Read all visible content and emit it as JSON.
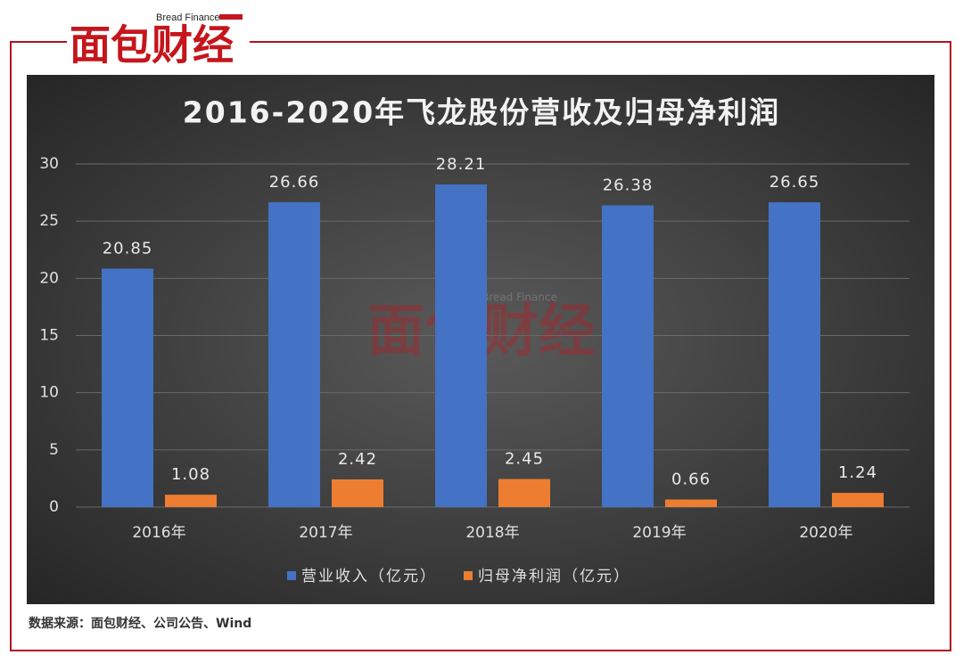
{
  "logo": {
    "name": "面包财经",
    "english": "Bread Finance"
  },
  "chart_data": {
    "type": "bar",
    "title": "2016-2020年飞龙股份营收及归母净利润",
    "categories": [
      "2016年",
      "2017年",
      "2018年",
      "2019年",
      "2020年"
    ],
    "series": [
      {
        "name": "营业收入（亿元）",
        "color": "#4472c4",
        "values": [
          20.85,
          26.66,
          28.21,
          26.38,
          26.65
        ]
      },
      {
        "name": "归母净利润（亿元）",
        "color": "#ed7d31",
        "values": [
          1.08,
          2.42,
          2.45,
          0.66,
          1.24
        ]
      }
    ],
    "ylim": [
      0,
      30
    ],
    "yticks": [
      0,
      5,
      10,
      15,
      20,
      25,
      30
    ],
    "grid": true,
    "legend": "bottom"
  },
  "source": "数据来源：面包财经、公司公告、Wind"
}
